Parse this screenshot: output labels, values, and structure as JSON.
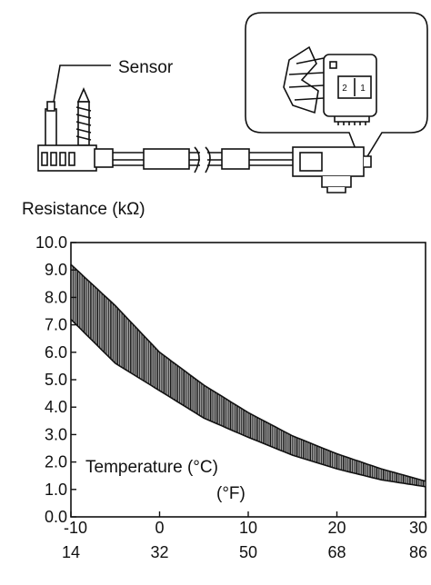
{
  "illustration": {
    "sensor_label": "Sensor",
    "connector_pins": [
      "2",
      "1"
    ]
  },
  "chart_data": {
    "type": "area",
    "title": "",
    "ylabel": "Resistance (kΩ)",
    "xlabel_c": "Temperature  (°C)",
    "xlabel_f": "(°F)",
    "xlim": [
      -10,
      30
    ],
    "ylim": [
      0,
      10
    ],
    "x_ticks_c": [
      "-10",
      "0",
      "10",
      "20",
      "30"
    ],
    "x_ticks_f": [
      "14",
      "32",
      "50",
      "68",
      "86"
    ],
    "y_ticks": [
      "0.0",
      "1.0",
      "2.0",
      "3.0",
      "4.0",
      "5.0",
      "6.0",
      "7.0",
      "8.0",
      "9.0",
      "10.0"
    ],
    "grid": false,
    "series": [
      {
        "x": [
          -10,
          -5,
          0,
          5,
          10,
          15,
          20,
          25,
          30
        ],
        "upper": [
          9.2,
          7.7,
          6.0,
          4.8,
          3.8,
          2.95,
          2.3,
          1.75,
          1.3
        ],
        "lower": [
          7.2,
          5.6,
          4.6,
          3.6,
          2.9,
          2.25,
          1.75,
          1.35,
          1.1
        ]
      }
    ]
  }
}
